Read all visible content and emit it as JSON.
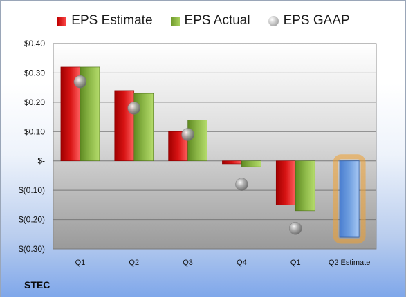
{
  "chart_data": {
    "type": "bar",
    "categories": [
      "Q1",
      "Q2",
      "Q3",
      "Q4",
      "Q1",
      "Q2 Estimate"
    ],
    "series": [
      {
        "name": "EPS Estimate",
        "values": [
          0.32,
          0.24,
          0.1,
          -0.01,
          -0.15,
          null
        ]
      },
      {
        "name": "EPS Actual",
        "values": [
          0.32,
          0.23,
          0.14,
          -0.02,
          -0.17,
          null
        ]
      },
      {
        "name": "EPS GAAP",
        "values": [
          0.27,
          0.18,
          0.09,
          -0.08,
          -0.23,
          null
        ]
      }
    ],
    "forecast": {
      "category": "Q2 Estimate",
      "value": -0.26
    },
    "ylim": [
      -0.3,
      0.4
    ],
    "yticks": [
      0.4,
      0.3,
      0.2,
      0.1,
      0,
      -0.1,
      -0.2,
      -0.3
    ],
    "ytick_labels": [
      "$0.40",
      "$0.30",
      "$0.20",
      "$0.10",
      "$-",
      "$(0.10)",
      "$(0.20)",
      "$(0.30)"
    ],
    "legend_position": "top-center",
    "grid": true
  },
  "colors": {
    "estimate": "#d81414",
    "actual": "#8db848",
    "gaap": "#b0b0b0",
    "forecast": "#6f9fe0",
    "forecast_glow": "#f0a030",
    "plot_top": "#ffffff",
    "plot_bottom": "#9a9a9a"
  },
  "footer": {
    "ticker": "STEC"
  }
}
